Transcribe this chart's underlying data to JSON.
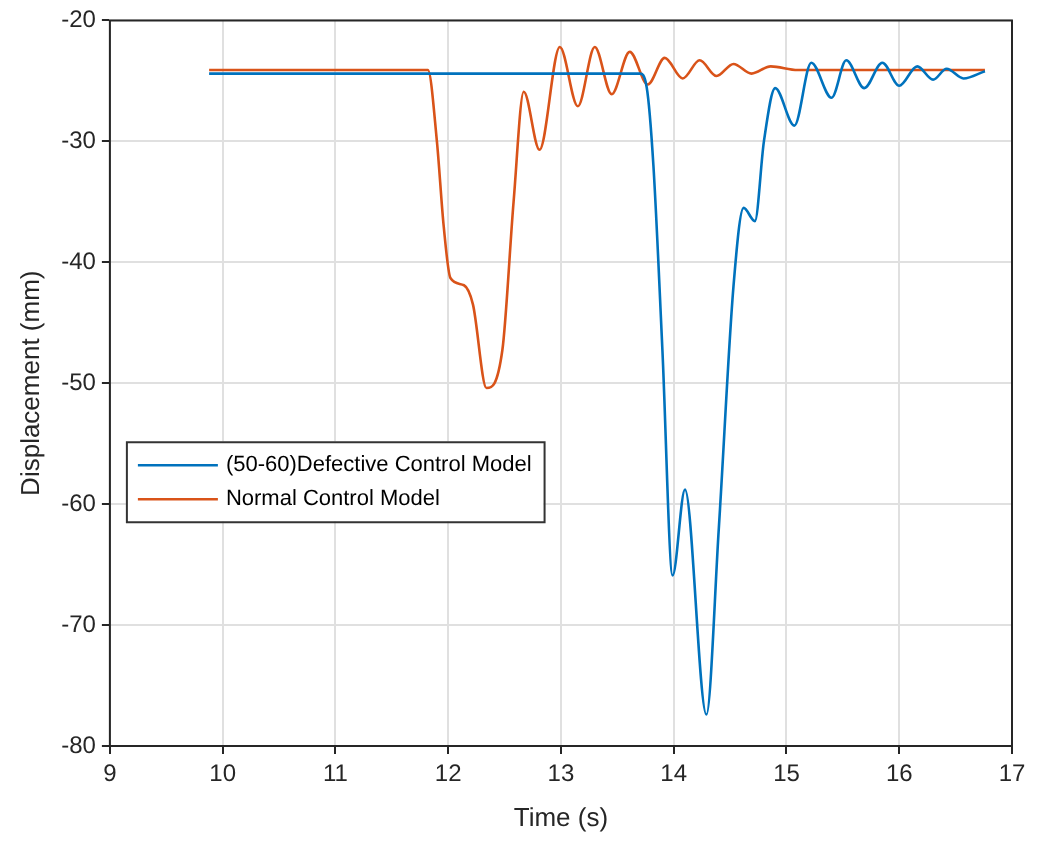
{
  "chart_data": {
    "type": "line",
    "xlabel": "Time (s)",
    "ylabel": "Displacement (mm)",
    "xlim": [
      9,
      17
    ],
    "xticks": [
      9,
      10,
      11,
      12,
      13,
      14,
      15,
      16,
      17
    ],
    "ylim": [
      -80,
      -20
    ],
    "yticks": [
      -80,
      -70,
      -60,
      -50,
      -40,
      -30,
      -20
    ],
    "grid": true,
    "legend": "left",
    "line_style": "solid",
    "marker": "none",
    "series": [
      {
        "name": "(50-60)Defective Control Model",
        "color": "#0072bd",
        "x": [
          9.88,
          13.7,
          13.76,
          13.82,
          13.9,
          13.99,
          14.1,
          14.29,
          14.4,
          14.53,
          14.62,
          14.72,
          14.8,
          14.9,
          15.07,
          15.22,
          15.4,
          15.53,
          15.69,
          15.85,
          16.0,
          16.16,
          16.3,
          16.42,
          16.57,
          16.76
        ],
        "values": [
          -24.4,
          -24.4,
          -25.5,
          -32,
          -47.3,
          -65.9,
          -58.8,
          -77.4,
          -62,
          -42,
          -35.5,
          -36.6,
          -30,
          -25.6,
          -28.7,
          -23.5,
          -26.4,
          -23.3,
          -25.6,
          -23.5,
          -25.4,
          -23.8,
          -24.9,
          -24,
          -24.8,
          -24.2
        ]
      },
      {
        "name": "Normal Control Model",
        "color": "#d95319",
        "x": [
          9.88,
          11.82,
          11.9,
          11.96,
          12.02,
          12.14,
          12.22,
          12.34,
          12.48,
          12.58,
          12.67,
          12.81,
          12.99,
          13.15,
          13.3,
          13.45,
          13.61,
          13.77,
          13.92,
          14.08,
          14.23,
          14.38,
          14.53,
          14.69,
          14.86,
          15.1,
          16.76
        ],
        "values": [
          -24.1,
          -24.1,
          -30,
          -37,
          -41.3,
          -41.9,
          -43.5,
          -50.4,
          -47.3,
          -35,
          -25.9,
          -30.7,
          -22.2,
          -27.1,
          -22.2,
          -26.1,
          -22.6,
          -25.3,
          -23.1,
          -24.8,
          -23.3,
          -24.6,
          -23.6,
          -24.4,
          -23.8,
          -24.1,
          -24.1
        ]
      }
    ]
  }
}
